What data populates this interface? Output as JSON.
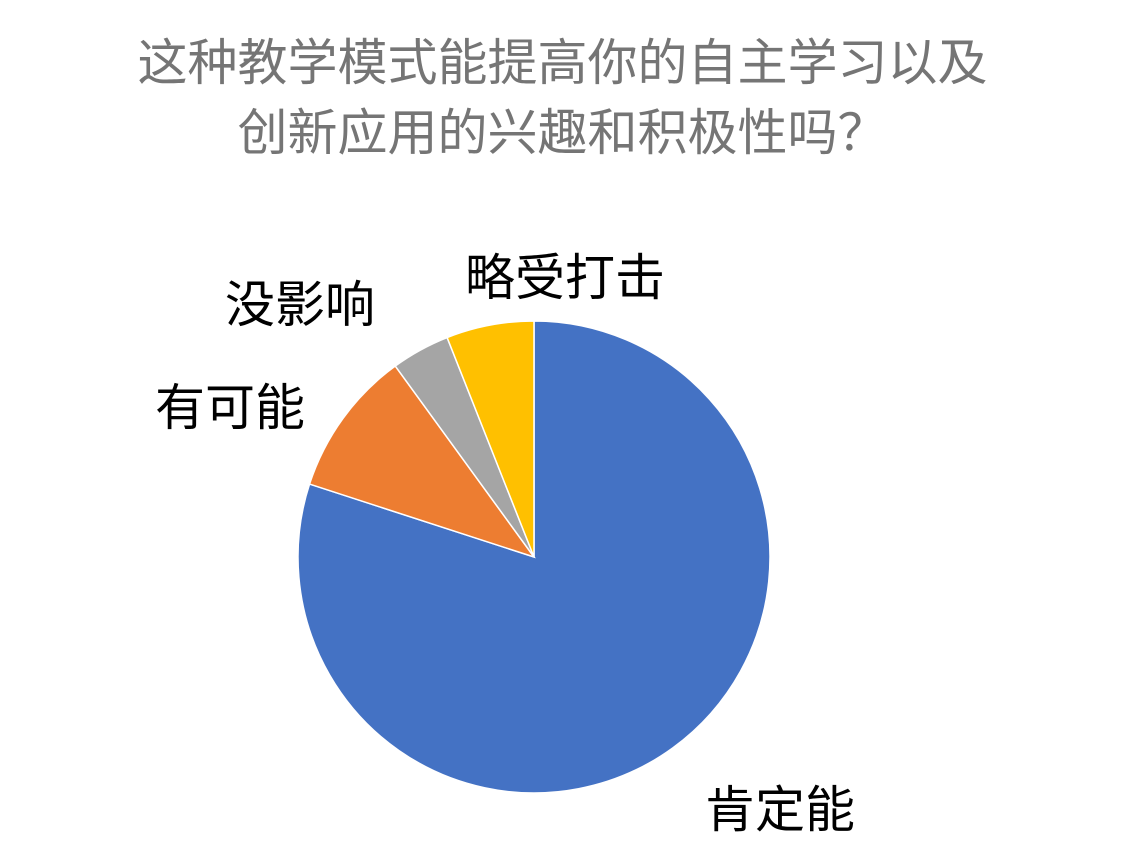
{
  "chart_data": {
    "type": "pie",
    "title_lines": [
      "这种教学模式能提高你的自主学习以及",
      "创新应用的兴趣和积极性吗？"
    ],
    "categories": [
      "肯定能",
      "有可能",
      "没影响",
      "略受打击"
    ],
    "values": [
      80,
      10,
      4,
      6
    ],
    "colors": [
      "#4472C4",
      "#ED7D31",
      "#A5A5A5",
      "#FFC000"
    ],
    "legend": "none",
    "start_angle": "12 o'clock, clockwise"
  }
}
